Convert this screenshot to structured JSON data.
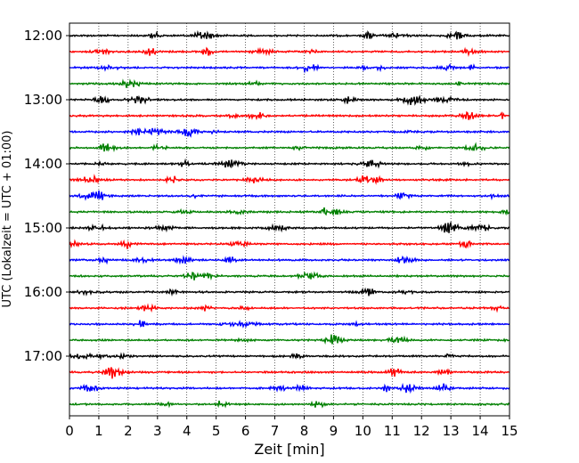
{
  "chart_data": {
    "type": "line",
    "title": "",
    "xlabel": "Zeit  [min]",
    "ylabel": "UTC (Lokalzeit = UTC + 01:00)",
    "xlim": [
      0,
      15
    ],
    "x_ticks": [
      "0",
      "1",
      "2",
      "3",
      "4",
      "5",
      "6",
      "7",
      "8",
      "9",
      "10",
      "11",
      "12",
      "13",
      "14",
      "15"
    ],
    "y_ticks": [
      {
        "label": "12:00",
        "row": 0
      },
      {
        "label": "13:00",
        "row": 4
      },
      {
        "label": "14:00",
        "row": 8
      },
      {
        "label": "15:00",
        "row": 12
      },
      {
        "label": "16:00",
        "row": 16
      },
      {
        "label": "17:00",
        "row": 20
      }
    ],
    "rows": 24,
    "minutes_per_row": 15,
    "row_colors": [
      "#000000",
      "#ff0000",
      "#0000ff",
      "#008000"
    ],
    "vertical_grid": "dotted",
    "traces": "continuous seismograph traces, one per 15-minute interval"
  }
}
